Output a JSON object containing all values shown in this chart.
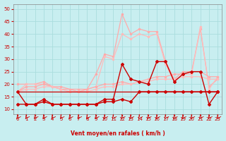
{
  "bg_color": "#c8eef0",
  "grid_color": "#aadddd",
  "xlabel": "Vent moyen/en rafales ( km/h )",
  "xlabel_color": "#cc0000",
  "tick_color": "#cc0000",
  "axis_color": "#888888",
  "xlim": [
    -0.5,
    23.5
  ],
  "ylim": [
    8,
    52
  ],
  "yticks": [
    10,
    15,
    20,
    25,
    30,
    35,
    40,
    45,
    50
  ],
  "xticks": [
    0,
    1,
    2,
    3,
    4,
    5,
    6,
    7,
    8,
    9,
    10,
    11,
    12,
    13,
    14,
    15,
    16,
    17,
    18,
    19,
    20,
    21,
    22,
    23
  ],
  "x": [
    0,
    1,
    2,
    3,
    4,
    5,
    6,
    7,
    8,
    9,
    10,
    11,
    12,
    13,
    14,
    15,
    16,
    17,
    18,
    19,
    20,
    21,
    22,
    23
  ],
  "line_rafales_max": [
    20,
    20,
    20,
    21,
    19,
    19,
    18,
    18,
    18,
    24,
    32,
    31,
    48,
    40,
    42,
    41,
    41,
    29,
    22,
    25,
    25,
    42,
    19,
    22
  ],
  "line_rafales_avg": [
    17,
    20,
    20,
    20,
    19,
    18,
    17,
    17,
    18,
    19,
    31,
    30,
    40,
    38,
    40,
    39,
    40,
    28,
    21,
    24,
    24,
    43,
    18,
    23
  ],
  "line_moy_max": [
    17,
    19,
    19,
    20,
    19,
    18,
    18,
    17,
    18,
    19,
    20,
    20,
    21,
    20,
    21,
    22,
    23,
    23,
    24,
    24,
    25,
    25,
    23,
    23
  ],
  "line_moy_avg": [
    17,
    18,
    18,
    19,
    19,
    18,
    17,
    17,
    17,
    18,
    19,
    19,
    20,
    20,
    21,
    21,
    22,
    22,
    22,
    23,
    23,
    23,
    22,
    22
  ],
  "line_data1": [
    17,
    12,
    12,
    14,
    12,
    12,
    12,
    12,
    12,
    12,
    14,
    14,
    28,
    22,
    21,
    20,
    29,
    29,
    21,
    24,
    25,
    25,
    12,
    17
  ],
  "line_data2": [
    12,
    12,
    12,
    13,
    12,
    12,
    12,
    12,
    12,
    12,
    13,
    13,
    14,
    13,
    17,
    17,
    17,
    17,
    17,
    17,
    17,
    17,
    17,
    17
  ],
  "line_flat": [
    17,
    17,
    17,
    17,
    17,
    17,
    17,
    17,
    17,
    17,
    17,
    17,
    17,
    17,
    17,
    17,
    17,
    17,
    17,
    17,
    17,
    17,
    17,
    17
  ],
  "c_light1": "#ffaaaa",
  "c_light2": "#ffbbbb",
  "c_dark": "#cc0000",
  "c_darkbrown": "#993333",
  "wind_arrows_color": "#cc0000"
}
